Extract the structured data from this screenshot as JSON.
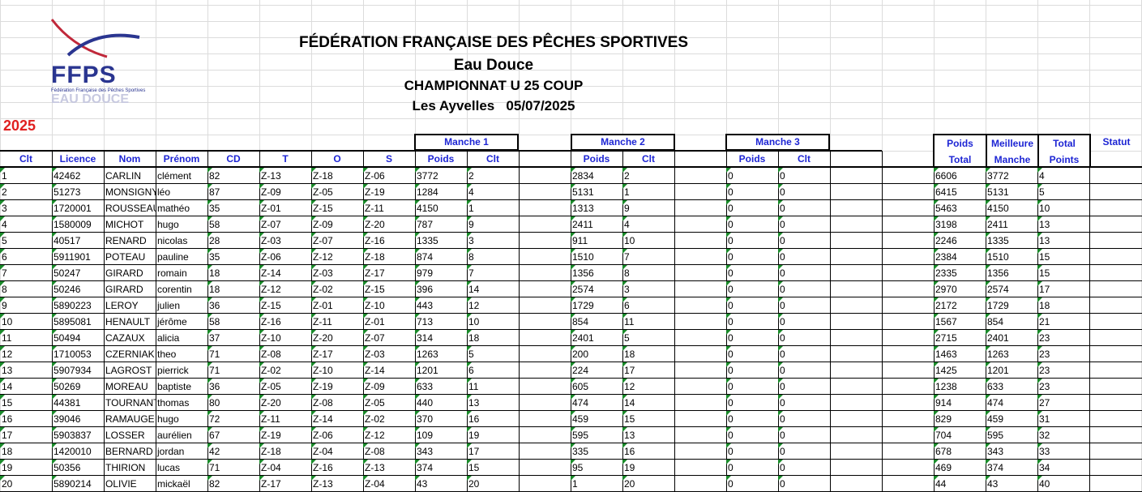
{
  "logo": {
    "acronym": "FFPS",
    "subtitle": "Fédération Française des Pêches Sportives",
    "tagline": "EAU DOUCE",
    "colors": {
      "swoosh": "#c0283a",
      "text": "#2a3590",
      "tagline": "#c7c9e0"
    }
  },
  "header": {
    "line1": "FÉDÉRATION FRANÇAISE DES PÊCHES SPORTIVES",
    "line2": "Eau Douce",
    "line3": "CHAMPIONNAT U 25 COUP",
    "line4": "Les Ayvelles   05/07/2025"
  },
  "year": "2025",
  "colors": {
    "header_text": "#1d25d4",
    "year": "#e02020",
    "grid": "#dcdcdc",
    "note_marker": "#1a8a2a"
  },
  "group_headers": {
    "manche1": "Manche 1",
    "manche2": "Manche 2",
    "manche3": "Manche 3"
  },
  "columns": {
    "clt": "Clt",
    "licence": "Licence",
    "nom": "Nom",
    "prenom": "Prénom",
    "cd": "CD",
    "t": "T",
    "o": "O",
    "s": "S",
    "m1_poids": "Poids",
    "m1_clt": "Clt",
    "m2_poids": "Poids",
    "m2_clt": "Clt",
    "m3_poids": "Poids",
    "m3_clt": "Clt",
    "poids_total_top": "Poids",
    "poids_total_bottom": "Total",
    "meilleure_top": "Meilleure",
    "meilleure_bottom": "Manche",
    "total_top": "Total",
    "total_bottom": "Points",
    "statut": "Statut"
  },
  "rows": [
    {
      "clt": "1",
      "licence": "42462",
      "nom": "CARLIN",
      "prenom": "clément",
      "cd": "82",
      "t": "Z-13",
      "o": "Z-18",
      "s": "Z-06",
      "m1p": "3772",
      "m1c": "2",
      "m2p": "2834",
      "m2c": "2",
      "m3p": "0",
      "m3c": "0",
      "pt": "6606",
      "mm": "3772",
      "tp": "4"
    },
    {
      "clt": "2",
      "licence": "51273",
      "nom": "MONSIGNY",
      "prenom": "léo",
      "cd": "87",
      "t": "Z-09",
      "o": "Z-05",
      "s": "Z-19",
      "m1p": "1284",
      "m1c": "4",
      "m2p": "5131",
      "m2c": "1",
      "m3p": "0",
      "m3c": "0",
      "pt": "6415",
      "mm": "5131",
      "tp": "5"
    },
    {
      "clt": "3",
      "licence": "1720001",
      "nom": "ROUSSEAU",
      "prenom": "mathéo",
      "cd": "35",
      "t": "Z-01",
      "o": "Z-15",
      "s": "Z-11",
      "m1p": "4150",
      "m1c": "1",
      "m2p": "1313",
      "m2c": "9",
      "m3p": "0",
      "m3c": "0",
      "pt": "5463",
      "mm": "4150",
      "tp": "10"
    },
    {
      "clt": "4",
      "licence": "1580009",
      "nom": "MICHOT",
      "prenom": "hugo",
      "cd": "58",
      "t": "Z-07",
      "o": "Z-09",
      "s": "Z-20",
      "m1p": "787",
      "m1c": "9",
      "m2p": "2411",
      "m2c": "4",
      "m3p": "0",
      "m3c": "0",
      "pt": "3198",
      "mm": "2411",
      "tp": "13"
    },
    {
      "clt": "5",
      "licence": "40517",
      "nom": "RENARD",
      "prenom": "nicolas",
      "cd": "28",
      "t": "Z-03",
      "o": "Z-07",
      "s": "Z-16",
      "m1p": "1335",
      "m1c": "3",
      "m2p": "911",
      "m2c": "10",
      "m3p": "0",
      "m3c": "0",
      "pt": "2246",
      "mm": "1335",
      "tp": "13"
    },
    {
      "clt": "6",
      "licence": "5911901",
      "nom": "POTEAU",
      "prenom": "pauline",
      "cd": "35",
      "t": "Z-06",
      "o": "Z-12",
      "s": "Z-18",
      "m1p": "874",
      "m1c": "8",
      "m2p": "1510",
      "m2c": "7",
      "m3p": "0",
      "m3c": "0",
      "pt": "2384",
      "mm": "1510",
      "tp": "15"
    },
    {
      "clt": "7",
      "licence": "50247",
      "nom": "GIRARD",
      "prenom": "romain",
      "cd": "18",
      "t": "Z-14",
      "o": "Z-03",
      "s": "Z-17",
      "m1p": "979",
      "m1c": "7",
      "m2p": "1356",
      "m2c": "8",
      "m3p": "0",
      "m3c": "0",
      "pt": "2335",
      "mm": "1356",
      "tp": "15"
    },
    {
      "clt": "8",
      "licence": "50246",
      "nom": "GIRARD",
      "prenom": "corentin",
      "cd": "18",
      "t": "Z-12",
      "o": "Z-02",
      "s": "Z-15",
      "m1p": "396",
      "m1c": "14",
      "m2p": "2574",
      "m2c": "3",
      "m3p": "0",
      "m3c": "0",
      "pt": "2970",
      "mm": "2574",
      "tp": "17"
    },
    {
      "clt": "9",
      "licence": "5890223",
      "nom": "LEROY",
      "prenom": "julien",
      "cd": "36",
      "t": "Z-15",
      "o": "Z-01",
      "s": "Z-10",
      "m1p": "443",
      "m1c": "12",
      "m2p": "1729",
      "m2c": "6",
      "m3p": "0",
      "m3c": "0",
      "pt": "2172",
      "mm": "1729",
      "tp": "18"
    },
    {
      "clt": "10",
      "licence": "5895081",
      "nom": "HENAULT",
      "prenom": "jérôme",
      "cd": "58",
      "t": "Z-16",
      "o": "Z-11",
      "s": "Z-01",
      "m1p": "713",
      "m1c": "10",
      "m2p": "854",
      "m2c": "11",
      "m3p": "0",
      "m3c": "0",
      "pt": "1567",
      "mm": "854",
      "tp": "21"
    },
    {
      "clt": "11",
      "licence": "50494",
      "nom": "CAZAUX",
      "prenom": "alicia",
      "cd": "37",
      "t": "Z-10",
      "o": "Z-20",
      "s": "Z-07",
      "m1p": "314",
      "m1c": "18",
      "m2p": "2401",
      "m2c": "5",
      "m3p": "0",
      "m3c": "0",
      "pt": "2715",
      "mm": "2401",
      "tp": "23"
    },
    {
      "clt": "12",
      "licence": "1710053",
      "nom": "CZERNIAK",
      "prenom": "theo",
      "cd": "71",
      "t": "Z-08",
      "o": "Z-17",
      "s": "Z-03",
      "m1p": "1263",
      "m1c": "5",
      "m2p": "200",
      "m2c": "18",
      "m3p": "0",
      "m3c": "0",
      "pt": "1463",
      "mm": "1263",
      "tp": "23"
    },
    {
      "clt": "13",
      "licence": "5907934",
      "nom": "LAGROST",
      "prenom": "pierrick",
      "cd": "71",
      "t": "Z-02",
      "o": "Z-10",
      "s": "Z-14",
      "m1p": "1201",
      "m1c": "6",
      "m2p": "224",
      "m2c": "17",
      "m3p": "0",
      "m3c": "0",
      "pt": "1425",
      "mm": "1201",
      "tp": "23"
    },
    {
      "clt": "14",
      "licence": "50269",
      "nom": "MOREAU",
      "prenom": "baptiste",
      "cd": "36",
      "t": "Z-05",
      "o": "Z-19",
      "s": "Z-09",
      "m1p": "633",
      "m1c": "11",
      "m2p": "605",
      "m2c": "12",
      "m3p": "0",
      "m3c": "0",
      "pt": "1238",
      "mm": "633",
      "tp": "23"
    },
    {
      "clt": "15",
      "licence": "44381",
      "nom": "TOURNANT",
      "prenom": "thomas",
      "cd": "80",
      "t": "Z-20",
      "o": "Z-08",
      "s": "Z-05",
      "m1p": "440",
      "m1c": "13",
      "m2p": "474",
      "m2c": "14",
      "m3p": "0",
      "m3c": "0",
      "pt": "914",
      "mm": "474",
      "tp": "27"
    },
    {
      "clt": "16",
      "licence": "39046",
      "nom": "RAMAUGE",
      "prenom": "hugo",
      "cd": "72",
      "t": "Z-11",
      "o": "Z-14",
      "s": "Z-02",
      "m1p": "370",
      "m1c": "16",
      "m2p": "459",
      "m2c": "15",
      "m3p": "0",
      "m3c": "0",
      "pt": "829",
      "mm": "459",
      "tp": "31"
    },
    {
      "clt": "17",
      "licence": "5903837",
      "nom": "LOSSER",
      "prenom": "aurélien",
      "cd": "67",
      "t": "Z-19",
      "o": "Z-06",
      "s": "Z-12",
      "m1p": "109",
      "m1c": "19",
      "m2p": "595",
      "m2c": "13",
      "m3p": "0",
      "m3c": "0",
      "pt": "704",
      "mm": "595",
      "tp": "32"
    },
    {
      "clt": "18",
      "licence": "1420010",
      "nom": "BERNARD",
      "prenom": "jordan",
      "cd": "42",
      "t": "Z-18",
      "o": "Z-04",
      "s": "Z-08",
      "m1p": "343",
      "m1c": "17",
      "m2p": "335",
      "m2c": "16",
      "m3p": "0",
      "m3c": "0",
      "pt": "678",
      "mm": "343",
      "tp": "33"
    },
    {
      "clt": "19",
      "licence": "50356",
      "nom": "THIRION",
      "prenom": "lucas",
      "cd": "71",
      "t": "Z-04",
      "o": "Z-16",
      "s": "Z-13",
      "m1p": "374",
      "m1c": "15",
      "m2p": "95",
      "m2c": "19",
      "m3p": "0",
      "m3c": "0",
      "pt": "469",
      "mm": "374",
      "tp": "34"
    },
    {
      "clt": "20",
      "licence": "5890214",
      "nom": "OLIVIE",
      "prenom": "mickaël",
      "cd": "82",
      "t": "Z-17",
      "o": "Z-13",
      "s": "Z-04",
      "m1p": "43",
      "m1c": "20",
      "m2p": "1",
      "m2c": "20",
      "m3p": "0",
      "m3c": "0",
      "pt": "44",
      "mm": "43",
      "tp": "40"
    }
  ]
}
